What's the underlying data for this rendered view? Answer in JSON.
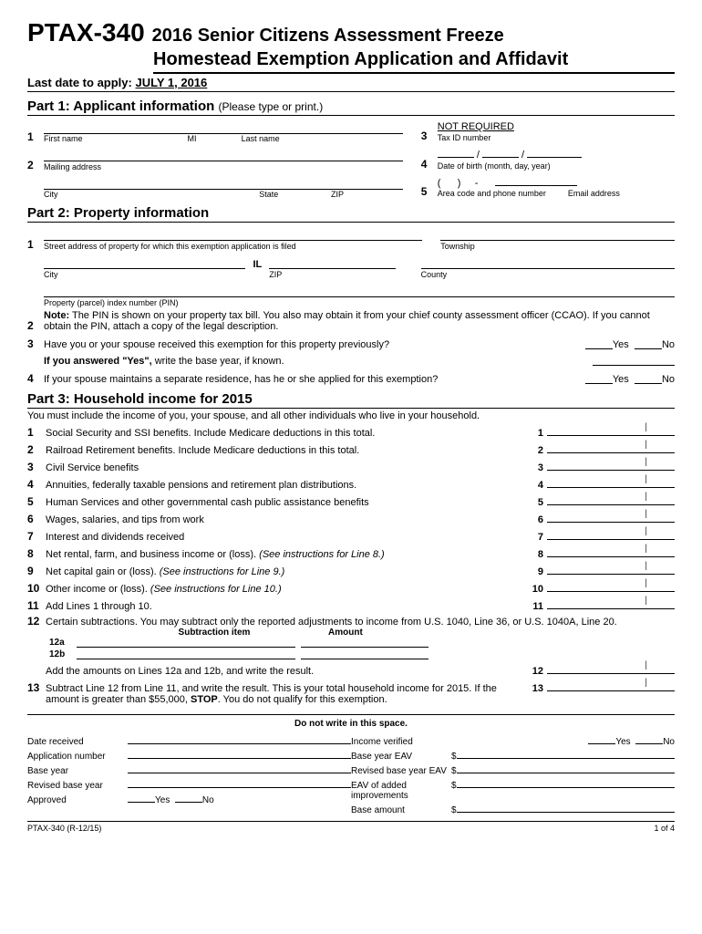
{
  "header": {
    "code": "PTAX-340",
    "title": "2016 Senior Citizens Assessment Freeze",
    "subtitle": "Homestead Exemption Application and Affidavit"
  },
  "apply": {
    "label": "Last date to apply:",
    "date": "JULY 1, 2016"
  },
  "part1": {
    "title": "Part 1: Applicant information",
    "paren": "(Please type or print.)",
    "f1": {
      "first": "First name",
      "mi": "MI",
      "last": "Last name"
    },
    "f2": "Mailing address",
    "f2b": {
      "city": "City",
      "state": "State",
      "zip": "ZIP"
    },
    "f3": {
      "num": "3",
      "val": "NOT REQUIRED",
      "label": "Tax ID number"
    },
    "f4": {
      "num": "4",
      "label": "Date of birth (month, day, year)"
    },
    "f5": {
      "num": "5",
      "label1": "Area code and phone number",
      "label2": "Email address"
    }
  },
  "part2": {
    "title": "Part 2: Property information",
    "f1a": "Street address of property for which this exemption application is filed",
    "f1b": "Township",
    "f1c_city": "City",
    "f1c_state": "IL",
    "f1c_zip": "ZIP",
    "f1c_county": "County",
    "f2": "Property (parcel) index number (PIN)",
    "note": "Note:",
    "note_text": "The PIN is shown on your property tax bill. You also may obtain it from your chief county assessment officer (CCAO). If you cannot obtain the PIN, attach a copy of the legal description.",
    "f3": "Have you or your spouse received this exemption for this property previously?",
    "f3b_bold": "If you answered \"Yes\",",
    "f3b_rest": "write the base year, if known.",
    "f4": "If your spouse maintains a separate residence, has he or she applied for this exemption?",
    "yes": "Yes",
    "no": "No"
  },
  "part3": {
    "title": "Part 3: Household income for 2015",
    "intro": "You must include the income of you, your spouse, and all other individuals who live in your household.",
    "lines": [
      {
        "n": "1",
        "t": "Social Security and SSI benefits. Include Medicare deductions in this total."
      },
      {
        "n": "2",
        "t": "Railroad Retirement benefits. Include Medicare deductions in this total."
      },
      {
        "n": "3",
        "t": "Civil Service benefits"
      },
      {
        "n": "4",
        "t": "Annuities, federally taxable pensions and retirement plan distributions."
      },
      {
        "n": "5",
        "t": "Human Services and other governmental cash public assistance benefits"
      },
      {
        "n": "6",
        "t": "Wages, salaries, and tips from work"
      },
      {
        "n": "7",
        "t": "Interest and dividends received"
      },
      {
        "n": "8",
        "t": "Net rental, farm, and business income or (loss).",
        "i": "(See instructions for Line 8.)"
      },
      {
        "n": "9",
        "t": "Net capital gain or (loss).",
        "i": "(See instructions for Line 9.)"
      },
      {
        "n": "10",
        "t": "Other income or (loss).",
        "i": "(See instructions for Line 10.)"
      },
      {
        "n": "11",
        "t": "Add Lines 1 through 10."
      }
    ],
    "l12": {
      "n": "12",
      "t": "Certain subtractions. You may subtract only the reported adjustments to income from U.S. 1040, Line 36, or U.S. 1040A, Line 20."
    },
    "sub_h1": "Subtraction item",
    "sub_h2": "Amount",
    "l12a": "12a",
    "l12b": "12b",
    "l12_add": "Add the amounts on Lines 12a and 12b, and write the result.",
    "l13": {
      "n": "13",
      "t": "Subtract Line 12 from Line 11, and write the result. This is your total household income for 2015. If the amount is greater than $55,000, "
    },
    "l13_stop": "STOP",
    "l13_end": ". You do not qualify for this exemption."
  },
  "footer": {
    "title": "Do not write in this space.",
    "left": [
      "Date received",
      "Application number",
      "Base year",
      "Revised base year",
      "Approved"
    ],
    "right": [
      "Income verified",
      "Base year EAV",
      "Revised base year EAV",
      "EAV of added improvements",
      "Base amount"
    ],
    "yes": "Yes",
    "no": "No"
  },
  "pagefoot": {
    "l": "PTAX-340 (R-12/15)",
    "r": "1 of 4"
  }
}
